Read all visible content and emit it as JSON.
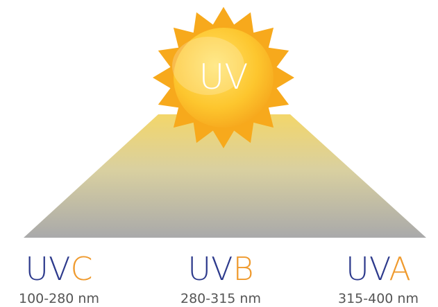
{
  "sun": {
    "label": "UV"
  },
  "bands": [
    {
      "prefix": "UV",
      "letter": "C",
      "range": "100-280 nm"
    },
    {
      "prefix": "UV",
      "letter": "B",
      "range": "280-315 nm"
    },
    {
      "prefix": "UV",
      "letter": "A",
      "range": "315-400 nm"
    }
  ]
}
